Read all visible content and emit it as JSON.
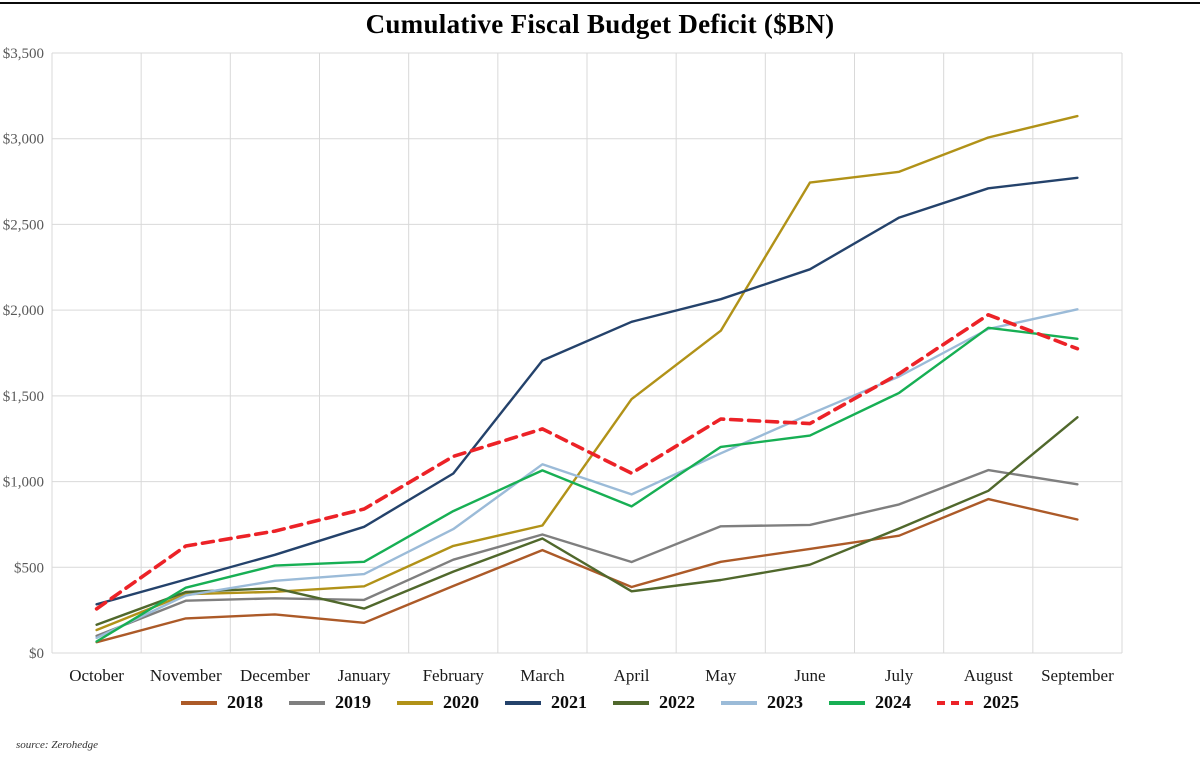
{
  "title": "Cumulative Fiscal Budget Deficit ($BN)",
  "source_note": "source: Zerohedge",
  "chart_data": {
    "type": "line",
    "x": [
      "October",
      "November",
      "December",
      "January",
      "February",
      "March",
      "April",
      "May",
      "June",
      "July",
      "August",
      "September"
    ],
    "title": "Cumulative Fiscal Budget Deficit ($BN)",
    "xlabel": "",
    "ylabel": "",
    "ylim": [
      0,
      3500
    ],
    "ytick_step": 500,
    "ytick_labels": [
      "$0",
      "$500",
      "$1,000",
      "$1,500",
      "$2,000",
      "$2,500",
      "$3,000",
      "$3,500"
    ],
    "grid": true,
    "legend_position": "bottom",
    "series": [
      {
        "name": "2018",
        "color": "#AC5A28",
        "dash": false,
        "values": [
          63,
          202,
          225,
          176,
          391,
          600,
          385,
          532,
          607,
          684,
          898,
          779
        ]
      },
      {
        "name": "2019",
        "color": "#7F7F7F",
        "dash": false,
        "values": [
          100,
          305,
          319,
          310,
          544,
          691,
          531,
          739,
          747,
          867,
          1067,
          984
        ]
      },
      {
        "name": "2020",
        "color": "#B19218",
        "dash": false,
        "values": [
          134,
          343,
          357,
          389,
          625,
          744,
          1481,
          1880,
          2744,
          2807,
          3007,
          3132
        ]
      },
      {
        "name": "2021",
        "color": "#24426B",
        "dash": false,
        "values": [
          284,
          429,
          573,
          736,
          1047,
          1706,
          1932,
          2064,
          2238,
          2540,
          2711,
          2772
        ]
      },
      {
        "name": "2022",
        "color": "#50682C",
        "dash": false,
        "values": [
          165,
          356,
          378,
          259,
          475,
          668,
          360,
          426,
          515,
          726,
          946,
          1375
        ]
      },
      {
        "name": "2023",
        "color": "#9BBBD8",
        "dash": false,
        "values": [
          88,
          336,
          421,
          460,
          723,
          1101,
          925,
          1165,
          1393,
          1613,
          1890,
          2005
        ]
      },
      {
        "name": "2024",
        "color": "#17AF54",
        "dash": false,
        "values": [
          67,
          381,
          510,
          532,
          828,
          1065,
          855,
          1202,
          1268,
          1517,
          1897,
          1833
        ]
      },
      {
        "name": "2025",
        "color": "#EC2227",
        "dash": true,
        "values": [
          257,
          624,
          711,
          840,
          1147,
          1307,
          1049,
          1365,
          1338,
          1629,
          1973,
          1775
        ]
      }
    ]
  }
}
